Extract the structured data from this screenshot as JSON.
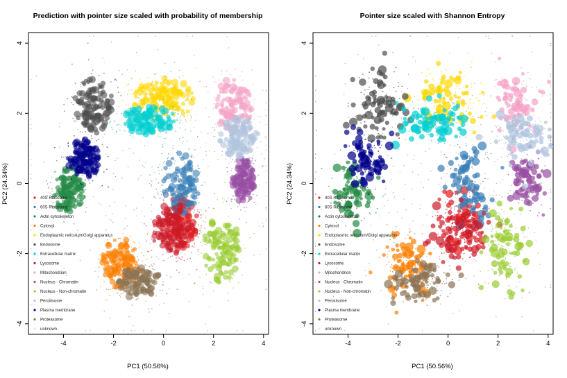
{
  "colors": {
    "40S Ribosome": "#E41A1C",
    "60S Ribosome": "#377EB8",
    "Actin cytoskeleton": "#238B45",
    "Cytosol": "#FF7F00",
    "Endoplasmic reticulum/Golgi apparatus": "#FFD700",
    "Endosome": "#4D4D4D",
    "Extracellular matrix": "#00CED1",
    "Lysosome": "#CC1A2A",
    "Mitochondrion": "#F5A3C7",
    "Nucleus - Chromatin": "#984EA3",
    "Nucleus - Non-chromatin": "#9ACD32",
    "Peroxisome": "#B0C4DE",
    "Plasma membrane": "#00008B",
    "Proteasome": "#8B7355",
    "unknown": "#E8E8E8"
  },
  "chart_data": [
    {
      "type": "scatter",
      "title": "Prediction with pointer size scaled with probability of membership",
      "xlabel": "PC1 (50.56%)",
      "ylabel": "PC2 (24.34%)",
      "xlim": [
        -5.4,
        4.2
      ],
      "ylim": [
        -4.3,
        4.3
      ],
      "xticks": [
        -4,
        -2,
        0,
        2,
        4
      ],
      "yticks": [
        -4,
        -2,
        0,
        2,
        4
      ],
      "size_encoding": "probability of membership",
      "legend_position": "bottom-left",
      "legend": [
        "40S Ribosome",
        "60S Ribosome",
        "Actin cytoskeleton",
        "Cytosol",
        "Endoplasmic reticulum/Golgi apparatus",
        "Endosome",
        "Extracellular matrix",
        "Lysosome",
        "Mitochondrion",
        "Nucleus - Chromatin",
        "Nucleus - Non-chromatin",
        "Peroxisome",
        "Plasma membrane",
        "Proteasome",
        "unknown"
      ],
      "series": [
        {
          "name": "40S Ribosome",
          "center": [
            0.6,
            -1.1
          ],
          "spread": [
            0.5,
            0.5
          ]
        },
        {
          "name": "60S Ribosome",
          "center": [
            0.7,
            0.0
          ],
          "spread": [
            0.45,
            0.55
          ]
        },
        {
          "name": "Actin cytoskeleton",
          "center": [
            -3.8,
            -0.2
          ],
          "spread": [
            0.4,
            0.45
          ]
        },
        {
          "name": "Cytosol",
          "center": [
            -1.7,
            -2.3
          ],
          "spread": [
            0.5,
            0.45
          ]
        },
        {
          "name": "Endoplasmic reticulum/Golgi apparatus",
          "center": [
            0.0,
            2.4
          ],
          "spread": [
            0.75,
            0.4
          ]
        },
        {
          "name": "Endosome",
          "center": [
            -2.8,
            2.2
          ],
          "spread": [
            0.5,
            0.5
          ]
        },
        {
          "name": "Extracellular matrix",
          "center": [
            -0.6,
            1.8
          ],
          "spread": [
            0.7,
            0.25
          ]
        },
        {
          "name": "Lysosome",
          "center": [
            0.4,
            -1.3
          ],
          "spread": [
            0.55,
            0.45
          ]
        },
        {
          "name": "Mitochondrion",
          "center": [
            2.8,
            2.2
          ],
          "spread": [
            0.45,
            0.5
          ]
        },
        {
          "name": "Nucleus - Chromatin",
          "center": [
            3.2,
            0.1
          ],
          "spread": [
            0.3,
            0.4
          ]
        },
        {
          "name": "Nucleus - Non-chromatin",
          "center": [
            2.3,
            -1.8
          ],
          "spread": [
            0.45,
            0.65
          ]
        },
        {
          "name": "Peroxisome",
          "center": [
            3.0,
            1.3
          ],
          "spread": [
            0.5,
            0.35
          ]
        },
        {
          "name": "Plasma membrane",
          "center": [
            -3.2,
            0.7
          ],
          "spread": [
            0.4,
            0.35
          ]
        },
        {
          "name": "Proteasome",
          "center": [
            -1.0,
            -2.8
          ],
          "spread": [
            0.55,
            0.3
          ]
        },
        {
          "name": "unknown",
          "center": [
            0.0,
            0.0
          ],
          "spread": [
            2.5,
            2.0
          ]
        }
      ]
    },
    {
      "type": "scatter",
      "title": "Pointer size scaled with Shannon Entropy",
      "xlabel": "PC1 (50.56%)",
      "ylabel": "PC2 (24.34%)",
      "xlim": [
        -5.4,
        4.2
      ],
      "ylim": [
        -4.3,
        4.3
      ],
      "xticks": [
        -4,
        -2,
        0,
        2,
        4
      ],
      "yticks": [
        -4,
        -2,
        0,
        2,
        4
      ],
      "size_encoding": "Shannon entropy",
      "legend_position": "bottom-left",
      "legend": [
        "40S Ribosome",
        "60S Ribosome",
        "Actin cytoskeleton",
        "Cytosol",
        "Endoplasmic reticulum/Golgi apparatus",
        "Endosome",
        "Extracellular matrix",
        "Lysosome",
        "Mitochondrion",
        "Nucleus - Chromatin",
        "Nucleus - Non-chromatin",
        "Peroxisome",
        "Plasma membrane",
        "Proteasome",
        "unknown"
      ],
      "series": [
        {
          "name": "40S Ribosome",
          "center": [
            0.6,
            -1.1
          ],
          "spread": [
            0.5,
            0.5
          ]
        },
        {
          "name": "60S Ribosome",
          "center": [
            0.7,
            0.0
          ],
          "spread": [
            0.45,
            0.55
          ]
        },
        {
          "name": "Actin cytoskeleton",
          "center": [
            -3.8,
            -0.2
          ],
          "spread": [
            0.4,
            0.45
          ]
        },
        {
          "name": "Cytosol",
          "center": [
            -1.7,
            -2.3
          ],
          "spread": [
            0.5,
            0.45
          ]
        },
        {
          "name": "Endoplasmic reticulum/Golgi apparatus",
          "center": [
            0.0,
            2.4
          ],
          "spread": [
            0.75,
            0.4
          ]
        },
        {
          "name": "Endosome",
          "center": [
            -2.8,
            2.2
          ],
          "spread": [
            0.5,
            0.5
          ]
        },
        {
          "name": "Extracellular matrix",
          "center": [
            -0.6,
            1.8
          ],
          "spread": [
            0.7,
            0.25
          ]
        },
        {
          "name": "Lysosome",
          "center": [
            0.4,
            -1.3
          ],
          "spread": [
            0.55,
            0.45
          ]
        },
        {
          "name": "Mitochondrion",
          "center": [
            2.8,
            2.2
          ],
          "spread": [
            0.45,
            0.5
          ]
        },
        {
          "name": "Nucleus - Chromatin",
          "center": [
            3.2,
            0.1
          ],
          "spread": [
            0.3,
            0.4
          ]
        },
        {
          "name": "Nucleus - Non-chromatin",
          "center": [
            2.3,
            -1.8
          ],
          "spread": [
            0.45,
            0.65
          ]
        },
        {
          "name": "Peroxisome",
          "center": [
            3.0,
            1.3
          ],
          "spread": [
            0.5,
            0.35
          ]
        },
        {
          "name": "Plasma membrane",
          "center": [
            -3.2,
            0.7
          ],
          "spread": [
            0.4,
            0.35
          ]
        },
        {
          "name": "Proteasome",
          "center": [
            -1.0,
            -2.8
          ],
          "spread": [
            0.55,
            0.3
          ]
        },
        {
          "name": "unknown",
          "center": [
            0.0,
            0.0
          ],
          "spread": [
            2.5,
            2.0
          ]
        }
      ]
    }
  ]
}
